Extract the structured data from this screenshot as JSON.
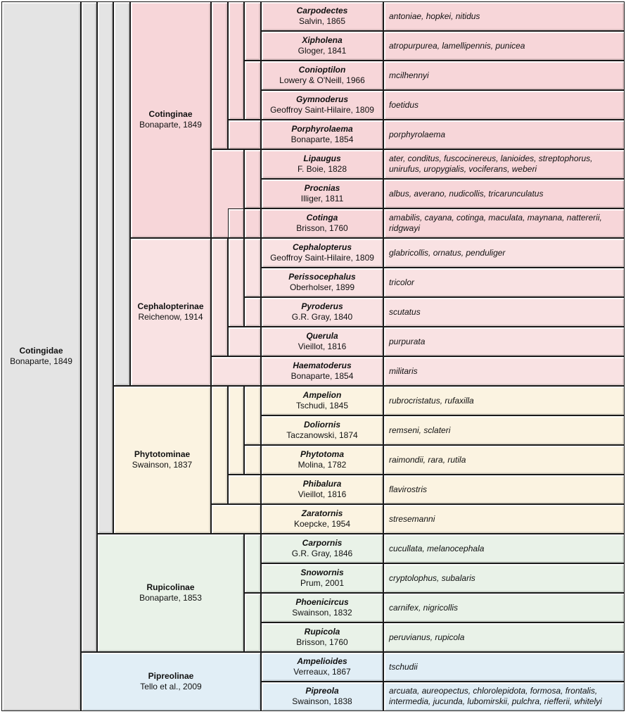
{
  "colors": {
    "family": "#e4e4e4",
    "cotinginae": "#f7d6d9",
    "cephalopterinae": "#f9e2e3",
    "phytotominae": "#fbf3e1",
    "rupicolinae": "#e9f2e8",
    "pipreolinae": "#e1eef6",
    "border": "#1a1a1a"
  },
  "family": {
    "name": "Cotingidae",
    "author": "Bonaparte, 1849"
  },
  "subfamilies": [
    {
      "name": "Cotinginae",
      "author": "Bonaparte, 1849"
    },
    {
      "name": "Cephalopterinae",
      "author": "Reichenow, 1914"
    },
    {
      "name": "Phytotominae",
      "author": "Swainson, 1837"
    },
    {
      "name": "Rupicolinae",
      "author": "Bonaparte, 1853"
    },
    {
      "name": "Pipreolinae",
      "author": "Tello et al., 2009"
    }
  ],
  "genera": [
    {
      "name": "Carpodectes",
      "author": "Salvin, 1865",
      "species": "antoniae, hopkei, nitidus"
    },
    {
      "name": "Xipholena",
      "author": "Gloger, 1841",
      "species": "atropurpurea, lamellipennis, punicea"
    },
    {
      "name": "Conioptilon",
      "author": "Lowery & O'Neill, 1966",
      "species": "mcilhennyi"
    },
    {
      "name": "Gymnoderus",
      "author": "Geoffroy Saint-Hilaire, 1809",
      "species": "foetidus"
    },
    {
      "name": "Porphyrolaema",
      "author": "Bonaparte, 1854",
      "species": "porphyrolaema"
    },
    {
      "name": "Lipaugus",
      "author": "F. Boie, 1828",
      "species": "ater, conditus, fuscocinereus, lanioides, streptophorus, unirufus, uropygialis, vociferans, weberi"
    },
    {
      "name": "Procnias",
      "author": "Illiger, 1811",
      "species": "albus, averano, nudicollis, tricarunculatus"
    },
    {
      "name": "Cotinga",
      "author": "Brisson, 1760",
      "species": "amabilis, cayana, cotinga, maculata, maynana, nattererii, ridgwayi"
    },
    {
      "name": "Cephalopterus",
      "author": "Geoffroy Saint-Hilaire, 1809",
      "species": "glabricollis, ornatus, penduliger"
    },
    {
      "name": "Perissocephalus",
      "author": "Oberholser, 1899",
      "species": "tricolor"
    },
    {
      "name": "Pyroderus",
      "author": "G.R. Gray, 1840",
      "species": "scutatus"
    },
    {
      "name": "Querula",
      "author": "Vieillot, 1816",
      "species": "purpurata"
    },
    {
      "name": "Haematoderus",
      "author": "Bonaparte, 1854",
      "species": "militaris"
    },
    {
      "name": "Ampelion",
      "author": "Tschudi, 1845",
      "species": "rubrocristatus, rufaxilla"
    },
    {
      "name": "Doliornis",
      "author": "Taczanowski, 1874",
      "species": "remseni, sclateri"
    },
    {
      "name": "Phytotoma",
      "author": "Molina, 1782",
      "species": "raimondii, rara, rutila"
    },
    {
      "name": "Phibalura",
      "author": "Vieillot, 1816",
      "species": "flavirostris"
    },
    {
      "name": "Zaratornis",
      "author": "Koepcke, 1954",
      "species": "stresemanni"
    },
    {
      "name": "Carpornis",
      "author": "G.R. Gray, 1846",
      "species": "cucullata, melanocephala"
    },
    {
      "name": "Snowornis",
      "author": "Prum, 2001",
      "species": "cryptolophus, subalaris"
    },
    {
      "name": "Phoenicircus",
      "author": "Swainson, 1832",
      "species": "carnifex, nigricollis"
    },
    {
      "name": "Rupicola",
      "author": "Brisson, 1760",
      "species": "peruvianus, rupicola"
    },
    {
      "name": "Ampelioides",
      "author": "Verreaux, 1867",
      "species": "tschudii"
    },
    {
      "name": "Pipreola",
      "author": "Swainson, 1838",
      "species": "arcuata, aureopectus, chlorolepidota, formosa, frontalis, intermedia, jucunda, lubomirskii, pulchra, riefferii, whitelyi"
    }
  ]
}
